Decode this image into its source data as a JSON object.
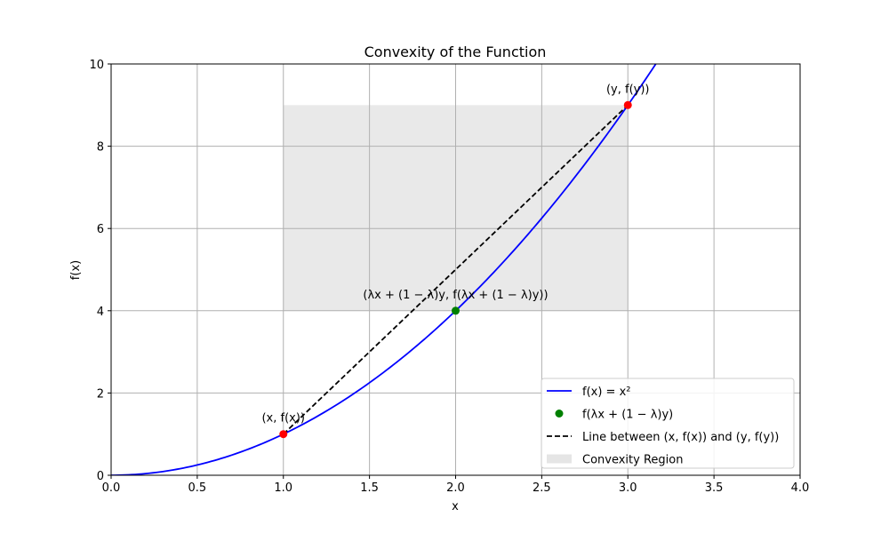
{
  "chart_data": {
    "type": "line",
    "title": "Convexity of the Function",
    "xlabel": "x",
    "ylabel": "f(x)",
    "xlim": [
      0,
      4
    ],
    "ylim": [
      0,
      10
    ],
    "grid": true,
    "xticks": [
      "0.0",
      "0.5",
      "1.0",
      "1.5",
      "2.0",
      "2.5",
      "3.0",
      "3.5",
      "4.0"
    ],
    "yticks": [
      "0",
      "2",
      "4",
      "6",
      "8",
      "10"
    ],
    "curve": {
      "name": "f(x) = x²",
      "function": "x^2",
      "x_range": [
        0,
        4
      ],
      "color": "#0000ff"
    },
    "region": {
      "name": "Convexity Region",
      "x": [
        1,
        3
      ],
      "y": [
        4,
        9
      ],
      "color": "#d3d3d3"
    },
    "chord": {
      "name": "Line between (x, f(x)) and (y, f(y))",
      "points": [
        [
          1,
          1
        ],
        [
          3,
          9
        ]
      ],
      "color": "#000000",
      "style": "dashed"
    },
    "points": [
      {
        "x": 1,
        "y": 1,
        "color": "#ff0000",
        "label": "(x, f(x))"
      },
      {
        "x": 3,
        "y": 9,
        "color": "#ff0000",
        "label": "(y, f(y))"
      },
      {
        "x": 2,
        "y": 4,
        "color": "#008000",
        "label": "(λx + (1 − λ)y, f(λx + (1 − λ)y))"
      }
    ],
    "legend": {
      "position": "lower-right",
      "entries": [
        {
          "kind": "line",
          "label": "f(x) = x²",
          "color": "#0000ff"
        },
        {
          "kind": "marker",
          "label": "f(λx + (1 − λ)y)",
          "color": "#008000"
        },
        {
          "kind": "dashed",
          "label": "Line between (x, f(x)) and (y, f(y))",
          "color": "#000000"
        },
        {
          "kind": "patch",
          "label": "Convexity Region",
          "color": "#d3d3d3"
        }
      ]
    }
  }
}
